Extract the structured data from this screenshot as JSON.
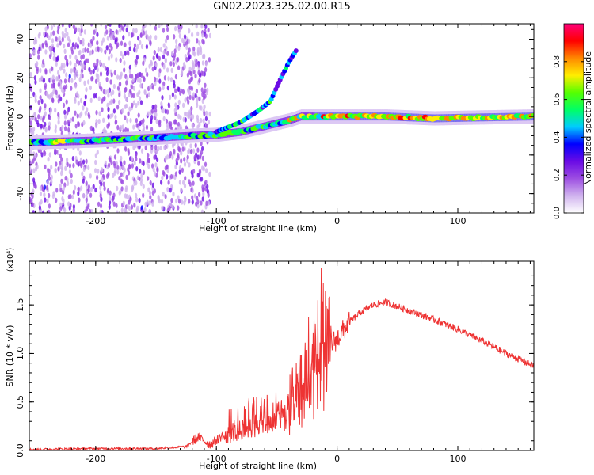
{
  "title": "GN02.2023.325.02.00.R15",
  "chart_data": [
    {
      "type": "heatmap",
      "xlabel": "Height of straight line (km)",
      "ylabel": "Frequency (Hz)",
      "xlim": [
        -255,
        163
      ],
      "ylim": [
        -50,
        48
      ],
      "xticks": [
        -200,
        -100,
        0,
        100
      ],
      "yticks": [
        -40,
        -20,
        0,
        20,
        40
      ],
      "colorbar": {
        "label": "Normalized spectral amplitude",
        "range": [
          0.0,
          1.0
        ],
        "ticks": [
          0.0,
          0.2,
          0.4,
          0.6,
          0.8
        ],
        "tick_labels": [
          "0.0",
          "0.2",
          "0.4",
          "0.6",
          "0.8"
        ],
        "colors": [
          "#ffffff",
          "#d0b3ee",
          "#9d4ee2",
          "#6a0be5",
          "#0000ff",
          "#00ccff",
          "#00ff66",
          "#55ff00",
          "#ffee00",
          "#ff8800",
          "#ff0000",
          "#ff007a"
        ]
      },
      "ridge": {
        "main_branch_x": [
          -255,
          -200,
          -150,
          -120,
          -100,
          -80,
          -60,
          -40,
          -30,
          -20,
          -10,
          0,
          40,
          80,
          120,
          163
        ],
        "main_branch_y": [
          -13.5,
          -12.5,
          -11,
          -10,
          -9.5,
          -8,
          -5,
          -2,
          0,
          0,
          0,
          0,
          0,
          -1,
          -0.5,
          0
        ],
        "upper_branch_x": [
          -100,
          -80,
          -65,
          -55,
          -48,
          -40,
          -33
        ],
        "upper_branch_y": [
          -8,
          -3,
          3,
          8,
          18,
          28,
          35
        ]
      },
      "grid": false
    },
    {
      "type": "line",
      "xlabel": "Height of straight line (km)",
      "ylabel": "SNR (10 * v/v)",
      "y_multiplier": "(x10⁴)",
      "xlim": [
        -255,
        163
      ],
      "ylim": [
        0,
        1.95
      ],
      "xticks": [
        -200,
        -100,
        0,
        100
      ],
      "yticks": [
        0.0,
        0.5,
        1.0,
        1.5
      ],
      "ytick_labels": [
        "0.0",
        "0.5",
        "1.0",
        "1.5"
      ],
      "line_color": "#ee3333",
      "series": [
        {
          "x": [
            -255,
            -200,
            -150,
            -125,
            -115,
            -105,
            -90,
            -80,
            -70,
            -60,
            -50,
            -40,
            -30,
            -25,
            -20,
            -15,
            -12,
            -8,
            -5,
            0,
            10,
            20,
            30,
            40,
            60,
            80,
            100,
            120,
            140,
            163
          ],
          "y": [
            0.01,
            0.02,
            0.02,
            0.04,
            0.14,
            0.06,
            0.2,
            0.32,
            0.35,
            0.38,
            0.42,
            0.5,
            0.7,
            0.9,
            0.95,
            1.05,
            1.2,
            1.05,
            1.1,
            1.15,
            1.32,
            1.43,
            1.5,
            1.53,
            1.44,
            1.35,
            1.25,
            1.13,
            1.0,
            0.87
          ]
        }
      ],
      "grid": false
    }
  ]
}
